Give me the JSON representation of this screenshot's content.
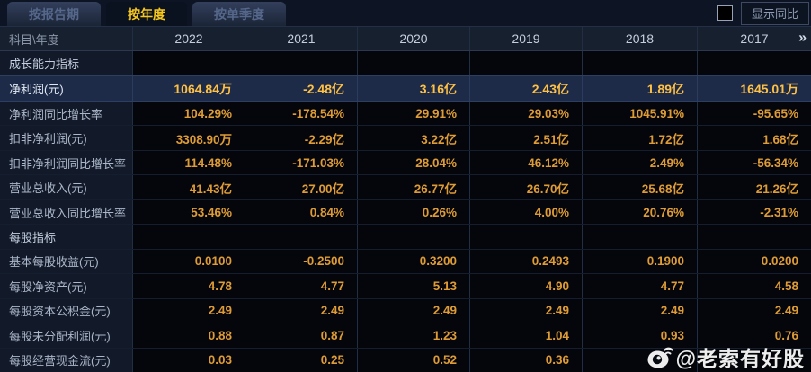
{
  "tabs": [
    {
      "id": "report-period",
      "label": "按报告期",
      "active": false
    },
    {
      "id": "yearly",
      "label": "按年度",
      "active": true
    },
    {
      "id": "single-quarter",
      "label": "按单季度",
      "active": false
    }
  ],
  "controls": {
    "show_yoy_label": "显示同比",
    "checkbox_checked": false
  },
  "table": {
    "corner_header": "科目\\年度",
    "year_columns": [
      "2022",
      "2021",
      "2020",
      "2019",
      "2018",
      "2017"
    ],
    "more_icon": "»",
    "rows": [
      {
        "type": "section",
        "label": "成长能力指标",
        "values": [
          "",
          "",
          "",
          "",
          "",
          ""
        ]
      },
      {
        "type": "data",
        "highlight": true,
        "label": "净利润(元)",
        "values": [
          "1064.84万",
          "-2.48亿",
          "3.16亿",
          "2.43亿",
          "1.89亿",
          "1645.01万"
        ]
      },
      {
        "type": "data",
        "label": "净利润同比增长率",
        "values": [
          "104.29%",
          "-178.54%",
          "29.91%",
          "29.03%",
          "1045.91%",
          "-95.65%"
        ]
      },
      {
        "type": "data",
        "label": "扣非净利润(元)",
        "values": [
          "3308.90万",
          "-2.29亿",
          "3.22亿",
          "2.51亿",
          "1.72亿",
          "1.68亿"
        ]
      },
      {
        "type": "data",
        "label": "扣非净利润同比增长率",
        "values": [
          "114.48%",
          "-171.03%",
          "28.04%",
          "46.12%",
          "2.49%",
          "-56.34%"
        ]
      },
      {
        "type": "data",
        "label": "营业总收入(元)",
        "values": [
          "41.43亿",
          "27.00亿",
          "26.77亿",
          "26.70亿",
          "25.68亿",
          "21.26亿"
        ]
      },
      {
        "type": "data",
        "label": "营业总收入同比增长率",
        "values": [
          "53.46%",
          "0.84%",
          "0.26%",
          "4.00%",
          "20.76%",
          "-2.31%"
        ]
      },
      {
        "type": "section",
        "label": "每股指标",
        "values": [
          "",
          "",
          "",
          "",
          "",
          ""
        ]
      },
      {
        "type": "data",
        "label": "基本每股收益(元)",
        "values": [
          "0.0100",
          "-0.2500",
          "0.3200",
          "0.2493",
          "0.1900",
          "0.0200"
        ]
      },
      {
        "type": "data",
        "label": "每股净资产(元)",
        "values": [
          "4.78",
          "4.77",
          "5.13",
          "4.90",
          "4.77",
          "4.58"
        ]
      },
      {
        "type": "data",
        "label": "每股资本公积金(元)",
        "values": [
          "2.49",
          "2.49",
          "2.49",
          "2.49",
          "2.49",
          "2.49"
        ]
      },
      {
        "type": "data",
        "label": "每股未分配利润(元)",
        "values": [
          "0.88",
          "0.87",
          "1.23",
          "1.04",
          "0.93",
          "0.76"
        ]
      },
      {
        "type": "data",
        "label": "每股经营现金流(元)",
        "values": [
          "0.03",
          "0.25",
          "0.52",
          "0.36",
          "",
          ""
        ]
      }
    ]
  },
  "watermark": {
    "handle": "@老索有好股",
    "icon": "weibo-icon"
  },
  "colors": {
    "active_tab_text": "#f6c71d",
    "value_text": "#df9c36",
    "highlight_value_text": "#ffc145",
    "highlight_row_bg": "#1e2b48",
    "label_column_bg": "#121a29",
    "cell_bg": "#04060b",
    "header_bg": "#17202f"
  }
}
